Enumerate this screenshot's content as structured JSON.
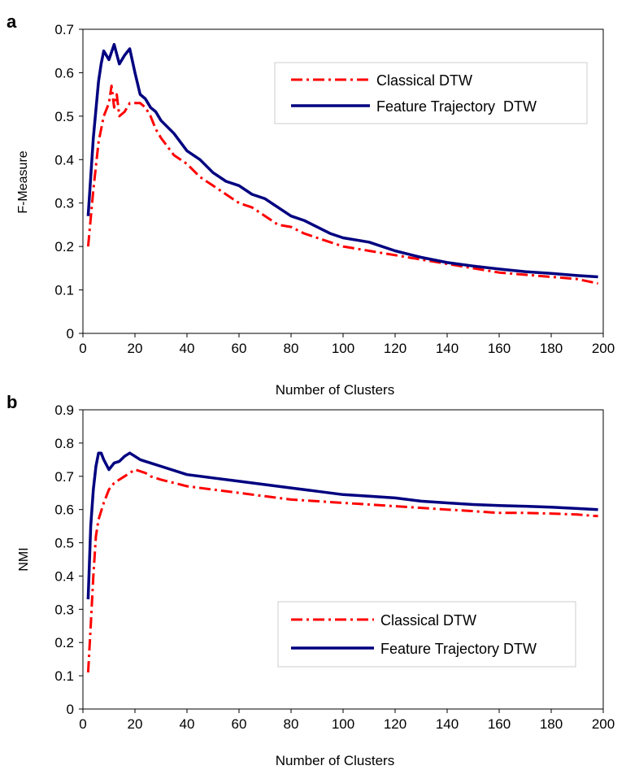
{
  "chart_data": [
    {
      "panel_label": "a",
      "type": "line",
      "xlabel": "Number of Clusters",
      "ylabel": "F-Measure",
      "xlim": [
        0,
        200
      ],
      "ylim": [
        0,
        0.7
      ],
      "xticks": [
        "0",
        "20",
        "40",
        "60",
        "80",
        "100",
        "120",
        "140",
        "160",
        "180",
        "200"
      ],
      "yticks": [
        "0",
        "0.1",
        "0.2",
        "0.3",
        "0.4",
        "0.5",
        "0.6",
        "0.7"
      ],
      "grid": false,
      "legend_position": "top-right",
      "series": [
        {
          "name": "Classical DTW",
          "style": "dash-dot",
          "color": "#ff0000",
          "x": [
            2,
            4,
            6,
            8,
            10,
            11,
            12,
            13,
            14,
            16,
            18,
            20,
            22,
            24,
            26,
            28,
            30,
            35,
            40,
            45,
            50,
            55,
            60,
            65,
            70,
            75,
            80,
            85,
            90,
            95,
            100,
            110,
            120,
            130,
            140,
            150,
            160,
            170,
            180,
            190,
            198
          ],
          "y": [
            0.2,
            0.33,
            0.44,
            0.5,
            0.53,
            0.57,
            0.52,
            0.55,
            0.5,
            0.51,
            0.53,
            0.53,
            0.53,
            0.52,
            0.5,
            0.47,
            0.45,
            0.41,
            0.39,
            0.36,
            0.34,
            0.32,
            0.3,
            0.29,
            0.27,
            0.25,
            0.245,
            0.23,
            0.22,
            0.21,
            0.2,
            0.19,
            0.18,
            0.17,
            0.16,
            0.15,
            0.14,
            0.135,
            0.13,
            0.125,
            0.115
          ]
        },
        {
          "name": "Feature Trajectory  DTW",
          "style": "solid",
          "color": "#000080",
          "x": [
            2,
            4,
            6,
            7,
            8,
            10,
            12,
            14,
            16,
            18,
            20,
            22,
            24,
            26,
            28,
            30,
            35,
            40,
            45,
            50,
            55,
            60,
            65,
            70,
            75,
            80,
            85,
            90,
            95,
            100,
            110,
            120,
            130,
            140,
            150,
            160,
            170,
            180,
            190,
            198
          ],
          "y": [
            0.27,
            0.45,
            0.58,
            0.62,
            0.65,
            0.63,
            0.665,
            0.62,
            0.64,
            0.655,
            0.6,
            0.55,
            0.54,
            0.52,
            0.51,
            0.49,
            0.46,
            0.42,
            0.4,
            0.37,
            0.35,
            0.34,
            0.32,
            0.31,
            0.29,
            0.27,
            0.26,
            0.245,
            0.23,
            0.22,
            0.21,
            0.19,
            0.175,
            0.163,
            0.155,
            0.148,
            0.142,
            0.138,
            0.133,
            0.13
          ]
        }
      ]
    },
    {
      "panel_label": "b",
      "type": "line",
      "xlabel": "Number of Clusters",
      "ylabel": "NMI",
      "xlim": [
        0,
        200
      ],
      "ylim": [
        0,
        0.9
      ],
      "xticks": [
        "0",
        "20",
        "40",
        "60",
        "80",
        "100",
        "120",
        "140",
        "160",
        "180",
        "200"
      ],
      "yticks": [
        "0",
        "0.1",
        "0.2",
        "0.3",
        "0.4",
        "0.5",
        "0.6",
        "0.7",
        "0.8",
        "0.9"
      ],
      "grid": false,
      "legend_position": "bottom-right",
      "series": [
        {
          "name": "Classical DTW",
          "style": "dash-dot",
          "color": "#ff0000",
          "x": [
            2,
            3,
            4,
            5,
            6,
            8,
            10,
            12,
            14,
            16,
            18,
            20,
            22,
            24,
            26,
            30,
            40,
            50,
            60,
            70,
            80,
            90,
            100,
            110,
            120,
            130,
            140,
            150,
            160,
            170,
            180,
            190,
            198
          ],
          "y": [
            0.11,
            0.25,
            0.4,
            0.52,
            0.57,
            0.62,
            0.66,
            0.68,
            0.69,
            0.7,
            0.71,
            0.72,
            0.715,
            0.71,
            0.7,
            0.69,
            0.67,
            0.66,
            0.65,
            0.64,
            0.63,
            0.625,
            0.62,
            0.615,
            0.61,
            0.605,
            0.6,
            0.595,
            0.59,
            0.59,
            0.588,
            0.585,
            0.58
          ]
        },
        {
          "name": "Feature Trajectory DTW",
          "style": "solid",
          "color": "#000080",
          "x": [
            2,
            3,
            4,
            5,
            6,
            7,
            8,
            10,
            12,
            14,
            16,
            18,
            20,
            22,
            24,
            26,
            30,
            40,
            50,
            60,
            70,
            80,
            90,
            100,
            110,
            120,
            130,
            140,
            150,
            160,
            170,
            180,
            190,
            198
          ],
          "y": [
            0.33,
            0.55,
            0.66,
            0.73,
            0.77,
            0.77,
            0.75,
            0.72,
            0.74,
            0.745,
            0.76,
            0.77,
            0.76,
            0.75,
            0.745,
            0.74,
            0.73,
            0.705,
            0.695,
            0.685,
            0.675,
            0.665,
            0.655,
            0.645,
            0.64,
            0.635,
            0.625,
            0.62,
            0.615,
            0.612,
            0.61,
            0.607,
            0.603,
            0.6
          ]
        }
      ]
    }
  ]
}
